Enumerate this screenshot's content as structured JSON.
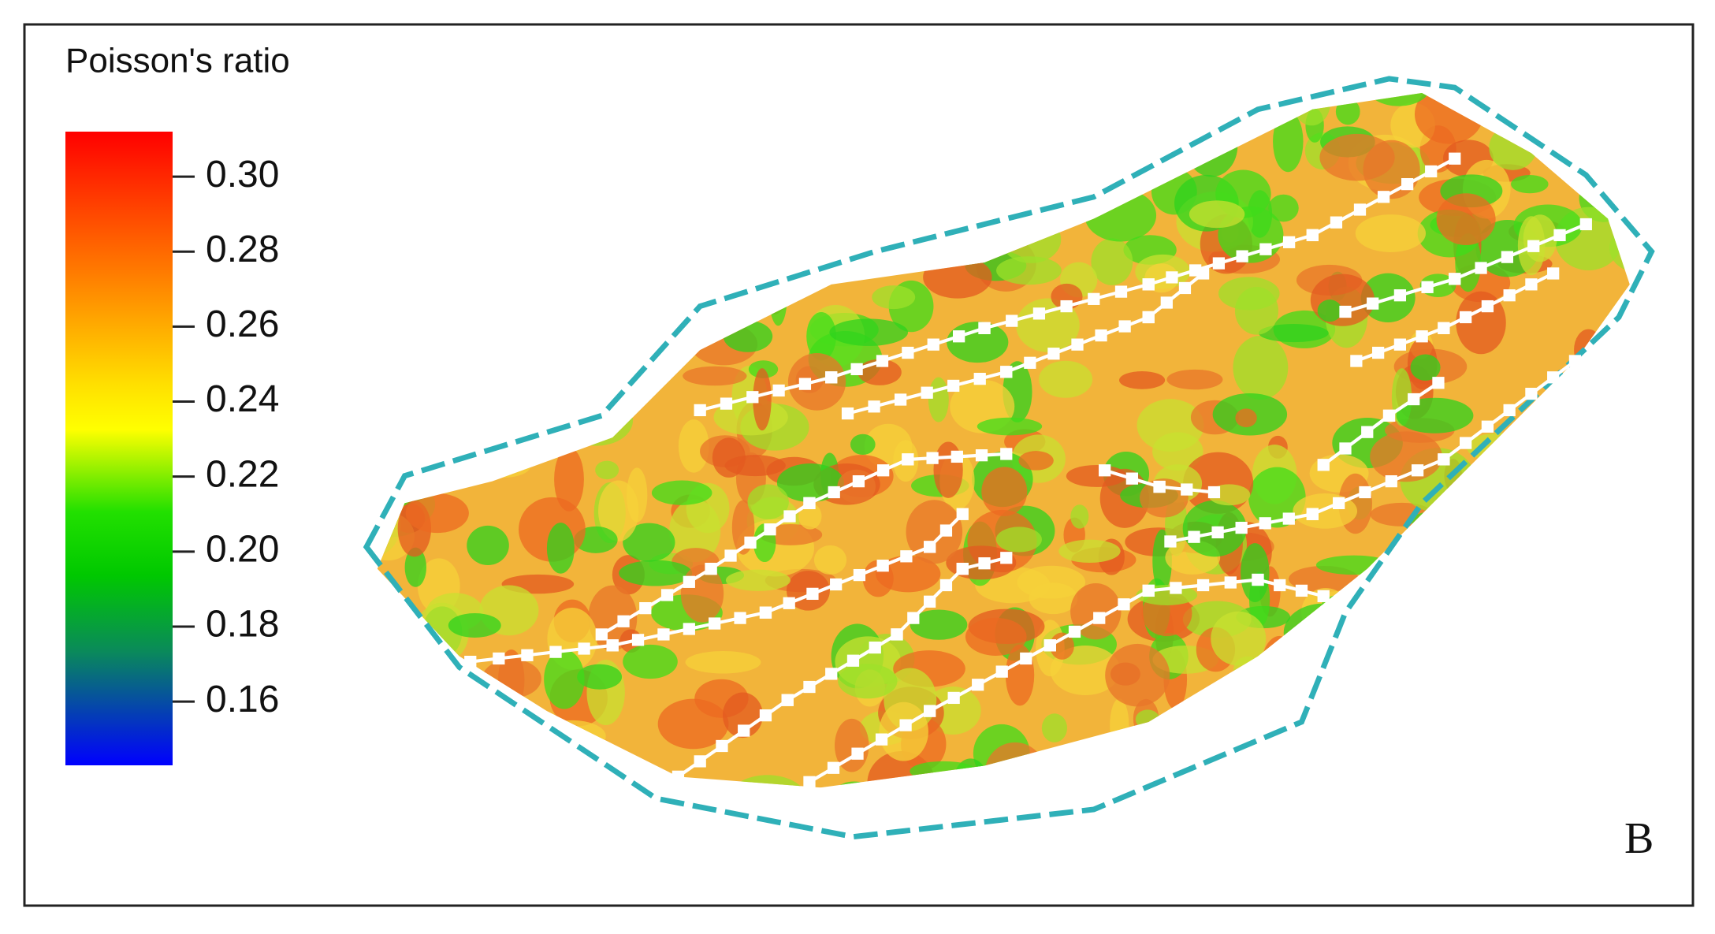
{
  "chart_data": {
    "type": "colormap",
    "title": "Poisson's ratio",
    "panel_label": "B",
    "clim": [
      0.143,
      0.312
    ],
    "cticks": [
      {
        "value": 0.3,
        "label": "0.30"
      },
      {
        "value": 0.28,
        "label": "0.28"
      },
      {
        "value": 0.26,
        "label": "0.26"
      },
      {
        "value": 0.24,
        "label": "0.24"
      },
      {
        "value": 0.22,
        "label": "0.22"
      },
      {
        "value": 0.2,
        "label": "0.20"
      },
      {
        "value": 0.18,
        "label": "0.18"
      },
      {
        "value": 0.16,
        "label": "0.16"
      }
    ]
  }
}
